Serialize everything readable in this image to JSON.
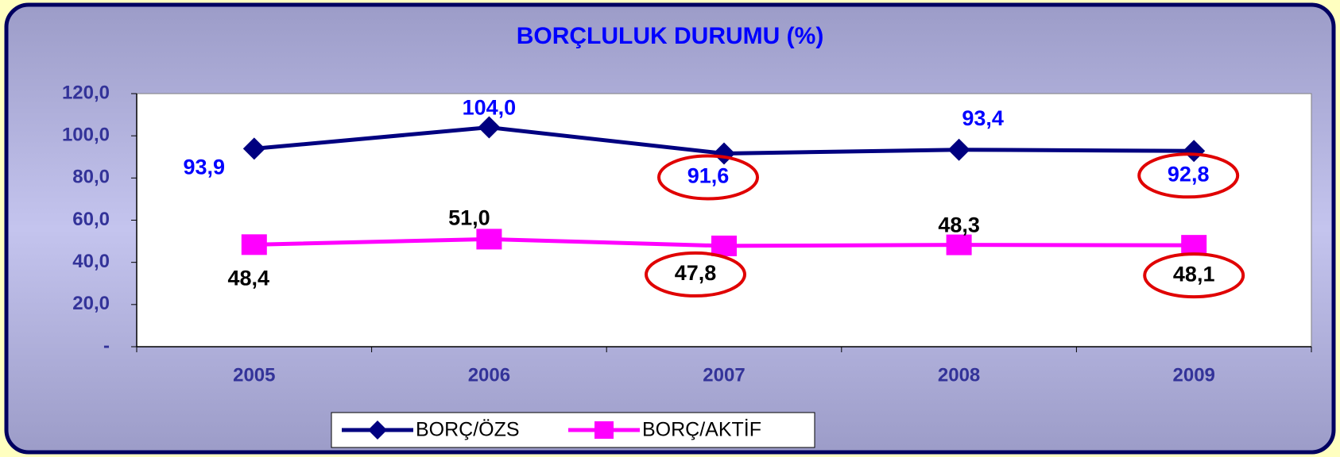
{
  "chart_data": {
    "type": "line",
    "title": "BORÇLULUK DURUMU (%)",
    "categories": [
      "2005",
      "2006",
      "2007",
      "2008",
      "2009"
    ],
    "series": [
      {
        "name": "BORÇ/ÖZS",
        "color": "#000080",
        "values": [
          93.9,
          104.0,
          91.6,
          93.4,
          92.8
        ],
        "value_labels": [
          "93,9",
          "104,0",
          "91,6",
          "93,4",
          "92,8"
        ]
      },
      {
        "name": "BORÇ/AKTİF",
        "color": "#ff00ff",
        "values": [
          48.4,
          51.0,
          47.8,
          48.3,
          48.1
        ],
        "value_labels": [
          "48,4",
          "51,0",
          "47,8",
          "48,3",
          "48,1"
        ]
      }
    ],
    "ylim": [
      0,
      120
    ],
    "yticks": [
      {
        "value": 0,
        "label": "-"
      },
      {
        "value": 20,
        "label": "20,0"
      },
      {
        "value": 40,
        "label": "40,0"
      },
      {
        "value": 60,
        "label": "60,0"
      },
      {
        "value": 80,
        "label": "80,0"
      },
      {
        "value": 100,
        "label": "100,0"
      },
      {
        "value": 120,
        "label": "120,0"
      }
    ],
    "legend": "bottom"
  }
}
